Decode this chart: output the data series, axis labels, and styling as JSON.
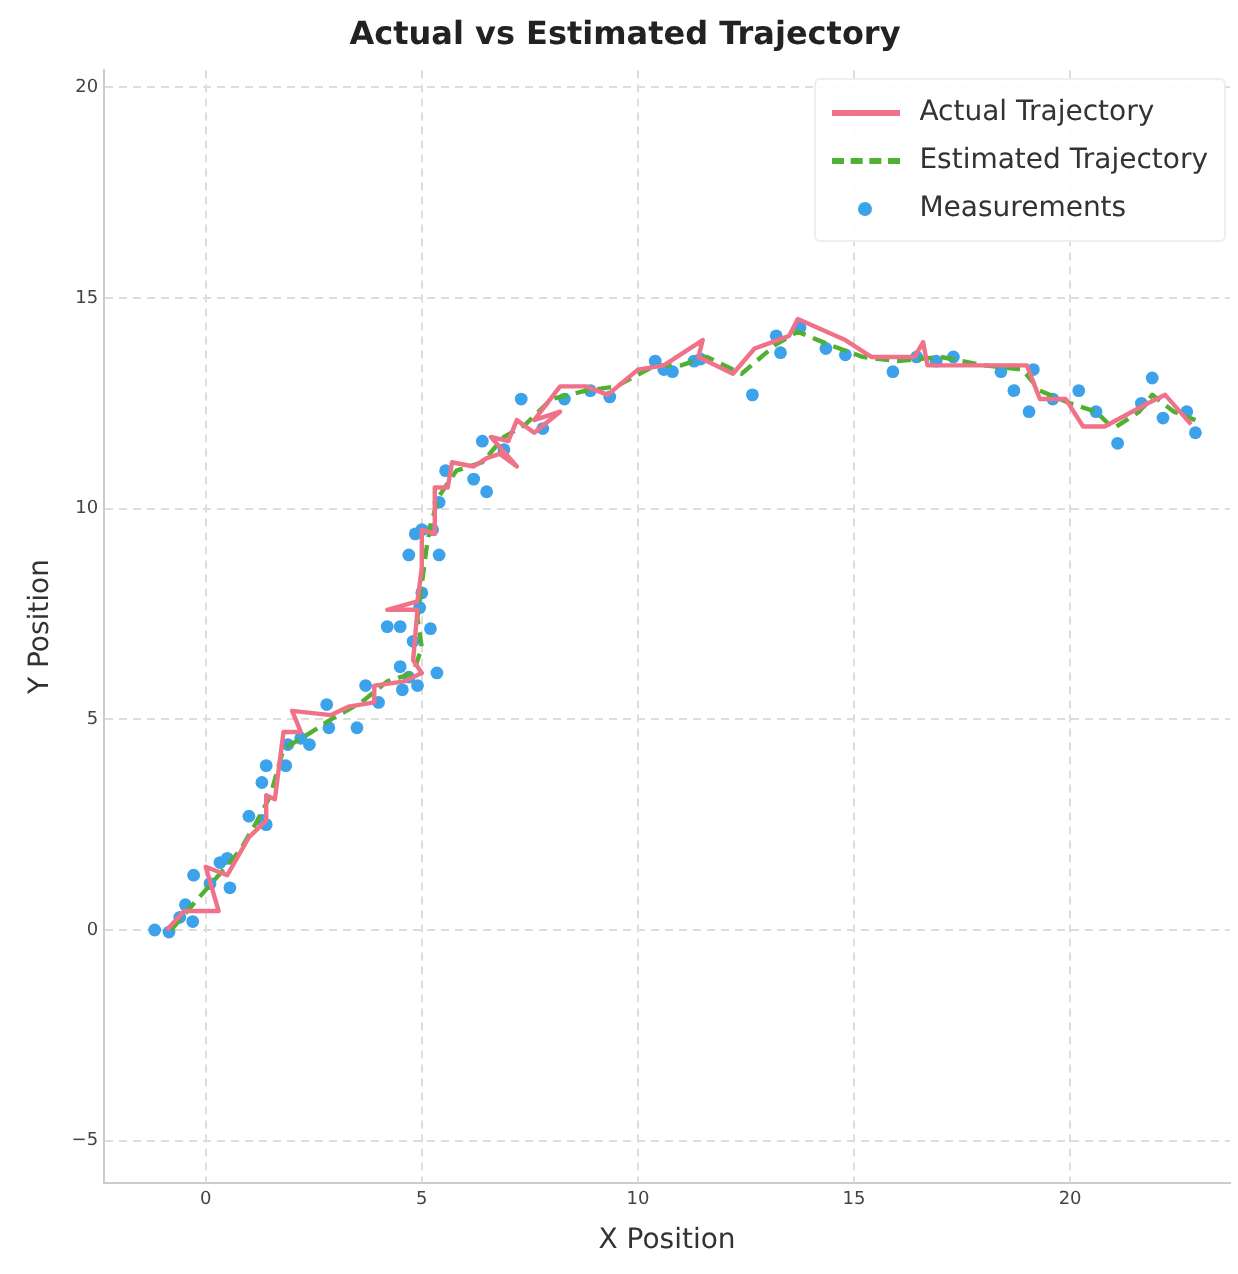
{
  "chart_data": {
    "type": "line",
    "title": "Actual vs Estimated Trajectory",
    "xlabel": "X Position",
    "ylabel": "Y Position",
    "xlim": [
      -2.35,
      23.7
    ],
    "ylim": [
      -6,
      20.4
    ],
    "xticks": [
      0,
      5,
      10,
      15,
      20
    ],
    "yticks": [
      -5,
      0,
      5,
      10,
      15,
      20
    ],
    "grid": true,
    "legend": "top right",
    "series": [
      {
        "name": "Actual Trajectory",
        "color": "#f07288",
        "line_style": "solid",
        "marker": "none",
        "x": [
          -0.9,
          -0.5,
          0.3,
          0.0,
          0.5,
          1.0,
          1.4,
          1.4,
          1.6,
          1.8,
          2.2,
          2.0,
          2.9,
          3.3,
          3.9,
          3.9,
          4.6,
          5.0,
          4.8,
          4.9,
          4.2,
          4.9,
          5.0,
          5.0,
          5.3,
          5.3,
          5.6,
          5.7,
          6.2,
          6.5,
          6.8,
          7.2,
          6.6,
          7.0,
          7.2,
          7.6,
          8.2,
          7.6,
          8.2,
          8.8,
          9.3,
          10.0,
          10.6,
          11.5,
          11.4,
          12.2,
          12.7,
          13.5,
          13.7,
          14.8,
          15.4,
          16.4,
          16.6,
          16.7,
          19.0,
          19.3,
          19.9,
          20.3,
          20.8,
          21.8,
          22.2,
          22.8
        ],
        "values": [
          0.0,
          0.45,
          0.45,
          1.5,
          1.3,
          2.2,
          2.6,
          3.2,
          3.1,
          4.7,
          4.7,
          5.2,
          5.1,
          5.3,
          5.4,
          5.8,
          5.9,
          6.1,
          6.4,
          7.6,
          7.6,
          7.8,
          8.6,
          9.5,
          9.4,
          10.5,
          10.5,
          11.1,
          11.0,
          11.2,
          11.3,
          11.0,
          11.7,
          11.6,
          12.1,
          11.8,
          12.3,
          12.1,
          12.9,
          12.9,
          12.7,
          13.3,
          13.4,
          14.0,
          13.6,
          13.2,
          13.8,
          14.1,
          14.5,
          14.0,
          13.6,
          13.6,
          13.95,
          13.4,
          13.4,
          12.6,
          12.6,
          11.95,
          11.95,
          12.5,
          12.7,
          12.0
        ]
      },
      {
        "name": "Estimated Trajectory",
        "color": "#4fb031",
        "line_style": "dashed",
        "marker": "none",
        "x": [
          -0.8,
          -0.3,
          0.3,
          0.8,
          1.2,
          1.5,
          1.8,
          2.3,
          2.9,
          3.6,
          4.2,
          4.8,
          5.0,
          4.9,
          5.0,
          5.1,
          5.2,
          5.4,
          5.8,
          6.4,
          6.9,
          7.4,
          8.0,
          8.8,
          9.5,
          10.4,
          11.0,
          11.6,
          12.4,
          13.2,
          13.7,
          14.4,
          15.2,
          16.0,
          17.0,
          18.0,
          18.9,
          19.3,
          20.0,
          20.6,
          21.0,
          21.6,
          21.9,
          22.4,
          22.9
        ],
        "values": [
          0.0,
          0.6,
          1.3,
          1.9,
          2.6,
          3.2,
          4.3,
          4.6,
          5.0,
          5.4,
          5.9,
          6.1,
          6.7,
          7.4,
          8.2,
          9.0,
          9.6,
          10.3,
          10.9,
          11.1,
          11.7,
          12.0,
          12.6,
          12.8,
          12.9,
          13.4,
          13.4,
          13.6,
          13.2,
          13.9,
          14.2,
          13.9,
          13.6,
          13.5,
          13.6,
          13.4,
          13.3,
          12.8,
          12.5,
          12.3,
          11.9,
          12.3,
          12.7,
          12.3,
          12.1
        ]
      },
      {
        "name": "Measurements",
        "type": "scatter",
        "color": "#3ca2ea",
        "marker": "circle",
        "x": [
          -1.18,
          -0.85,
          -0.6,
          -0.47,
          -0.28,
          -0.3,
          0.1,
          0.33,
          0.56,
          0.5,
          1.0,
          1.3,
          1.4,
          1.3,
          1.4,
          1.85,
          1.9,
          2.2,
          2.4,
          2.8,
          2.85,
          3.5,
          3.7,
          4.0,
          4.2,
          4.5,
          4.55,
          4.5,
          4.7,
          4.8,
          4.9,
          5.0,
          4.95,
          5.2,
          5.35,
          4.85,
          5.0,
          4.7,
          5.25,
          5.4,
          5.4,
          5.55,
          6.2,
          6.5,
          6.4,
          6.9,
          7.3,
          7.8,
          8.3,
          8.9,
          9.35,
          10.4,
          10.6,
          10.8,
          11.3,
          11.45,
          12.65,
          13.2,
          13.3,
          13.75,
          14.35,
          14.8,
          15.9,
          16.45,
          16.9,
          17.3,
          18.4,
          18.7,
          19.05,
          19.15,
          19.6,
          20.2,
          20.6,
          21.1,
          21.65,
          21.9,
          22.15,
          22.7,
          22.9
        ],
        "values": [
          0.0,
          -0.05,
          0.3,
          0.6,
          1.3,
          0.2,
          1.1,
          1.6,
          1.0,
          1.7,
          2.7,
          2.6,
          2.5,
          3.5,
          3.9,
          3.9,
          4.4,
          4.55,
          4.4,
          5.35,
          4.8,
          4.8,
          5.8,
          5.4,
          7.2,
          7.2,
          5.7,
          6.25,
          6.0,
          6.85,
          5.8,
          8.0,
          7.65,
          7.15,
          6.1,
          9.4,
          9.5,
          8.9,
          9.5,
          8.9,
          10.15,
          10.9,
          10.7,
          10.4,
          11.6,
          11.4,
          12.6,
          11.9,
          12.6,
          12.8,
          12.65,
          13.5,
          13.3,
          13.25,
          13.5,
          13.55,
          12.7,
          14.1,
          13.7,
          14.3,
          13.8,
          13.65,
          13.25,
          13.6,
          13.5,
          13.6,
          13.25,
          12.8,
          12.3,
          13.3,
          12.6,
          12.8,
          12.3,
          11.55,
          12.5,
          13.1,
          12.15,
          12.3,
          11.8
        ]
      }
    ]
  }
}
